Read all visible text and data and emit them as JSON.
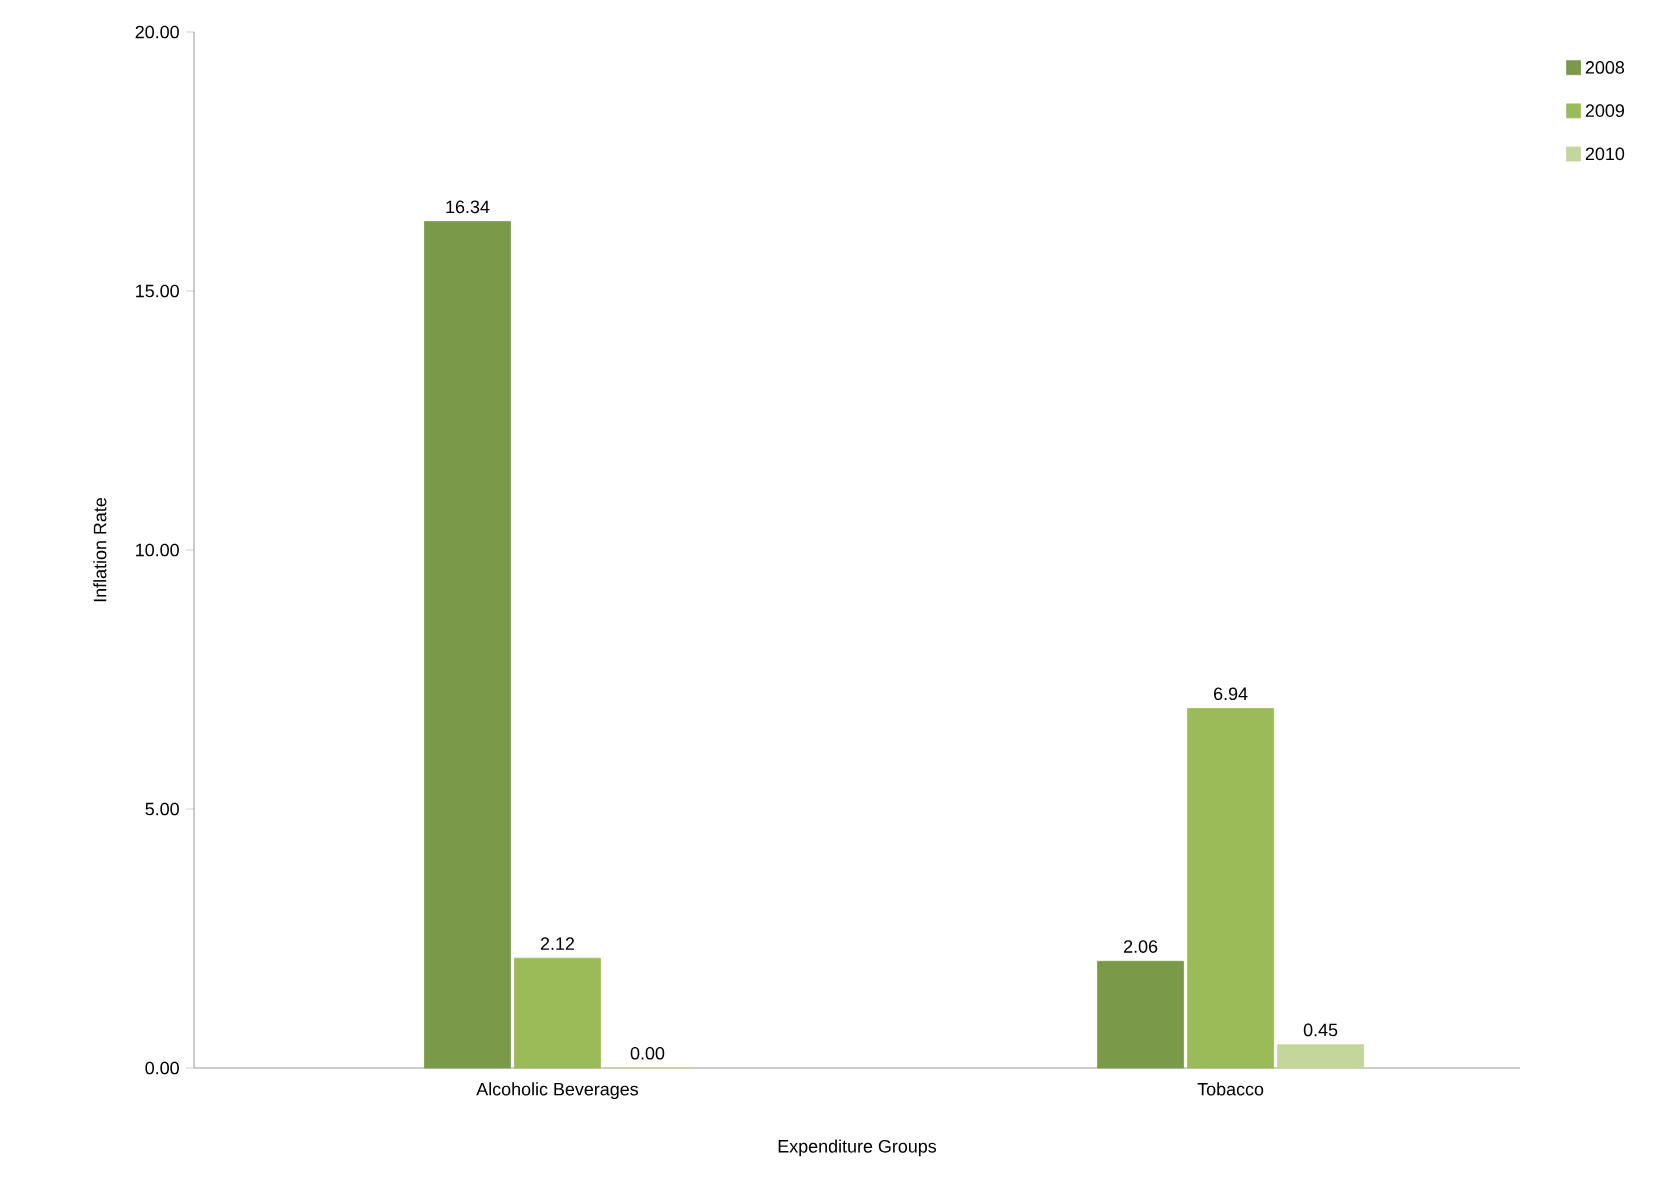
{
  "chart_data": {
    "type": "bar",
    "xlabel": "Expenditure Groups",
    "ylabel": "Inflation Rate",
    "categories": [
      "Alcoholic Beverages",
      "Tobacco"
    ],
    "series": [
      {
        "name": "2008",
        "color": "#7a9a4a",
        "values": [
          16.34,
          2.06
        ],
        "value_labels": [
          "16.34",
          "2.06"
        ]
      },
      {
        "name": "2009",
        "color": "#9bbb59",
        "values": [
          2.12,
          6.94
        ],
        "value_labels": [
          "2.12",
          "6.94"
        ]
      },
      {
        "name": "2010",
        "color": "#c3d69b",
        "values": [
          0.0,
          0.45
        ],
        "value_labels": [
          "0.00",
          "0.45"
        ]
      }
    ],
    "ylim": [
      0,
      20
    ],
    "yticks": [
      {
        "value": 0,
        "label": "0.00"
      },
      {
        "value": 5,
        "label": "5.00"
      },
      {
        "value": 10,
        "label": "10.00"
      },
      {
        "value": 15,
        "label": "15.00"
      },
      {
        "value": 20,
        "label": "20.00"
      }
    ],
    "legend": "top right",
    "grid": false
  }
}
